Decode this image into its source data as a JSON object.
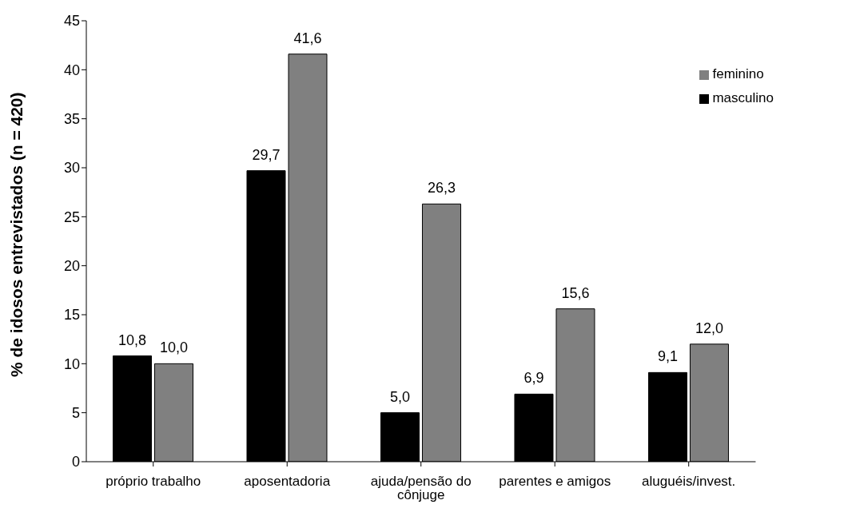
{
  "chart_data": {
    "type": "bar",
    "ylabel": "% de idosos entrevistados (n = 420)",
    "categories": [
      "próprio trabalho",
      "aposentadoria",
      "ajuda/pensão do cônjuge",
      "parentes e amigos",
      "aluguéis/invest."
    ],
    "series": [
      {
        "name": "masculino",
        "color": "#000000",
        "values": [
          10.8,
          29.7,
          5.0,
          6.9,
          9.1
        ],
        "value_labels": [
          "10,8",
          "29,7",
          "5,0",
          "6,9",
          "9,1"
        ]
      },
      {
        "name": "feminino",
        "color": "#808080",
        "values": [
          10.0,
          41.6,
          26.3,
          15.6,
          12.0
        ],
        "value_labels": [
          "10,0",
          "41,6",
          "26,3",
          "15,6",
          "12,0"
        ]
      }
    ],
    "ylim": [
      0,
      45
    ],
    "yticks": [
      0,
      5,
      10,
      15,
      20,
      25,
      30,
      35,
      40,
      45
    ],
    "grid": false,
    "legend": "top right"
  }
}
